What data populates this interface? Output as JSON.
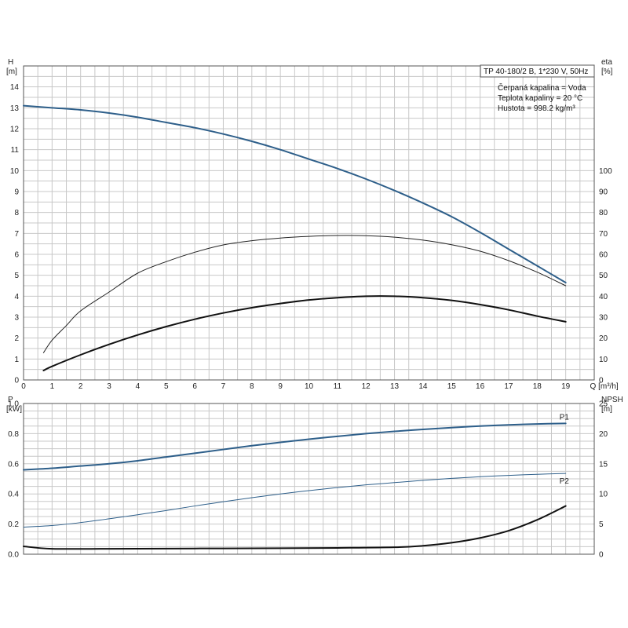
{
  "info_box": {
    "pump": "TP 40-180/2 B, 1*230 V, 50Hz",
    "lines": [
      "Čerpaná kapalina = Voda",
      "Teplota kapaliny = 20 °C",
      "Hustota = 998.2 kg/m³"
    ]
  },
  "colors": {
    "blue": "#2e5f8a",
    "black": "#111111",
    "thin_black": "#222222",
    "grid": "#c8c8c8"
  },
  "chart_data": [
    {
      "type": "line",
      "panel": "top",
      "xlabel": "Q [m³/h]",
      "xlim": [
        0,
        20
      ],
      "x_ticks": [
        0,
        1,
        2,
        3,
        4,
        5,
        6,
        7,
        8,
        9,
        10,
        11,
        12,
        13,
        14,
        15,
        16,
        17,
        18,
        19
      ],
      "y_left": {
        "label_top": "H",
        "label_unit": "[m]",
        "lim": [
          0,
          15
        ],
        "ticks": [
          0,
          1,
          2,
          3,
          4,
          5,
          6,
          7,
          8,
          9,
          10,
          11,
          12,
          13,
          14
        ]
      },
      "y_right": {
        "label_top": "eta",
        "label_unit": "[%]",
        "lim": [
          0,
          150
        ],
        "ticks": [
          0,
          10,
          20,
          30,
          40,
          50,
          60,
          70,
          80,
          90,
          100
        ]
      },
      "series": [
        {
          "key": "H",
          "axis": "left",
          "color": "blue",
          "width": 2,
          "points": [
            [
              0,
              13.1
            ],
            [
              1,
              13.0
            ],
            [
              2,
              12.9
            ],
            [
              3,
              12.75
            ],
            [
              4,
              12.55
            ],
            [
              5,
              12.3
            ],
            [
              6,
              12.05
            ],
            [
              7,
              11.75
            ],
            [
              8,
              11.4
            ],
            [
              9,
              11.0
            ],
            [
              10,
              10.55
            ],
            [
              11,
              10.1
            ],
            [
              12,
              9.6
            ],
            [
              13,
              9.05
            ],
            [
              14,
              8.45
            ],
            [
              15,
              7.8
            ],
            [
              16,
              7.05
            ],
            [
              17,
              6.25
            ],
            [
              18,
              5.45
            ],
            [
              19,
              4.65
            ]
          ]
        },
        {
          "key": "eta",
          "axis": "right",
          "color": "thin_black",
          "width": 1,
          "points": [
            [
              0.7,
              13
            ],
            [
              1,
              19
            ],
            [
              1.5,
              26
            ],
            [
              2,
              33
            ],
            [
              3,
              42
            ],
            [
              4,
              51
            ],
            [
              5,
              56.5
            ],
            [
              6,
              61
            ],
            [
              7,
              64.5
            ],
            [
              8,
              66.5
            ],
            [
              9,
              67.8
            ],
            [
              10,
              68.6
            ],
            [
              11,
              69
            ],
            [
              12,
              68.9
            ],
            [
              13,
              68.2
            ],
            [
              14,
              66.8
            ],
            [
              15,
              64.6
            ],
            [
              16,
              61.5
            ],
            [
              17,
              57
            ],
            [
              18,
              51.5
            ],
            [
              19,
              45
            ]
          ]
        },
        {
          "key": "P1_top",
          "axis": "left",
          "color": "black",
          "width": 2,
          "points": [
            [
              0.7,
              0.45
            ],
            [
              1,
              0.65
            ],
            [
              2,
              1.2
            ],
            [
              3,
              1.7
            ],
            [
              4,
              2.15
            ],
            [
              5,
              2.55
            ],
            [
              6,
              2.9
            ],
            [
              7,
              3.2
            ],
            [
              8,
              3.45
            ],
            [
              9,
              3.65
            ],
            [
              10,
              3.82
            ],
            [
              11,
              3.93
            ],
            [
              12,
              4.0
            ],
            [
              13,
              4.0
            ],
            [
              14,
              3.93
            ],
            [
              15,
              3.8
            ],
            [
              16,
              3.6
            ],
            [
              17,
              3.35
            ],
            [
              18,
              3.05
            ],
            [
              19,
              2.78
            ]
          ]
        }
      ]
    },
    {
      "type": "line",
      "panel": "bottom",
      "xlim": [
        0,
        20
      ],
      "y_left": {
        "label_top": "P",
        "label_unit": "[kW]",
        "lim": [
          0,
          1.0
        ],
        "ticks": [
          0.0,
          0.2,
          0.4,
          0.6,
          0.8,
          1.0
        ],
        "tick_labels": [
          "0.0",
          "0.2",
          "0.4",
          "0.6",
          "0.8",
          "1.0"
        ]
      },
      "y_right": {
        "label_top": "NPSH",
        "label_unit": "[m]",
        "lim": [
          0,
          25
        ],
        "ticks": [
          0,
          5,
          10,
          15,
          20,
          25
        ]
      },
      "series": [
        {
          "key": "P1",
          "name": "P1",
          "axis": "left",
          "color": "blue",
          "width": 2,
          "points": [
            [
              0,
              0.56
            ],
            [
              1,
              0.57
            ],
            [
              2,
              0.585
            ],
            [
              3,
              0.6
            ],
            [
              4,
              0.62
            ],
            [
              5,
              0.645
            ],
            [
              6,
              0.67
            ],
            [
              7,
              0.695
            ],
            [
              8,
              0.72
            ],
            [
              9,
              0.742
            ],
            [
              10,
              0.763
            ],
            [
              11,
              0.782
            ],
            [
              12,
              0.8
            ],
            [
              13,
              0.815
            ],
            [
              14,
              0.828
            ],
            [
              15,
              0.84
            ],
            [
              16,
              0.85
            ],
            [
              17,
              0.858
            ],
            [
              18,
              0.864
            ],
            [
              19,
              0.868
            ]
          ]
        },
        {
          "key": "P2",
          "name": "P2",
          "axis": "left",
          "color": "blue",
          "width": 1,
          "points": [
            [
              0,
              0.18
            ],
            [
              1,
              0.19
            ],
            [
              2,
              0.21
            ],
            [
              3,
              0.235
            ],
            [
              4,
              0.262
            ],
            [
              5,
              0.29
            ],
            [
              6,
              0.32
            ],
            [
              7,
              0.348
            ],
            [
              8,
              0.375
            ],
            [
              9,
              0.4
            ],
            [
              10,
              0.422
            ],
            [
              11,
              0.442
            ],
            [
              12,
              0.46
            ],
            [
              13,
              0.475
            ],
            [
              14,
              0.49
            ],
            [
              15,
              0.503
            ],
            [
              16,
              0.514
            ],
            [
              17,
              0.523
            ],
            [
              18,
              0.53
            ],
            [
              19,
              0.536
            ]
          ]
        },
        {
          "key": "NPSH",
          "axis": "right",
          "color": "black",
          "width": 2,
          "points": [
            [
              0,
              1.3
            ],
            [
              1,
              0.9
            ],
            [
              3,
              0.9
            ],
            [
              6,
              0.95
            ],
            [
              9,
              1.0
            ],
            [
              11,
              1.05
            ],
            [
              13,
              1.15
            ],
            [
              14,
              1.4
            ],
            [
              15,
              1.9
            ],
            [
              16,
              2.7
            ],
            [
              17,
              3.9
            ],
            [
              18,
              5.7
            ],
            [
              19,
              8.0
            ]
          ]
        }
      ]
    }
  ]
}
